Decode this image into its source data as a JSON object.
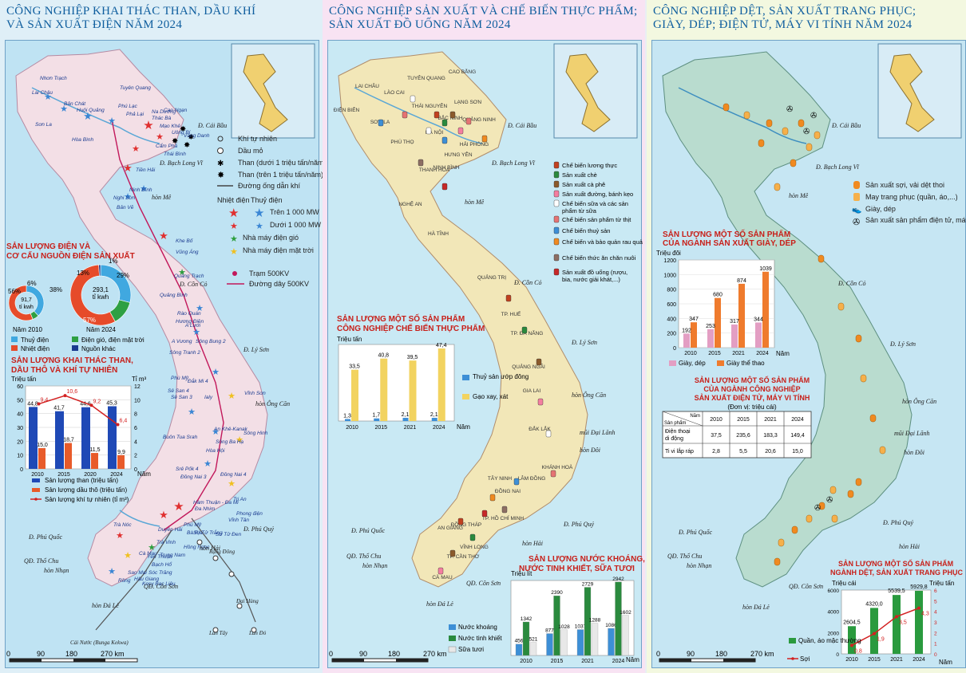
{
  "panel1": {
    "title_line1": "CÔNG NGHIỆP KHAI THÁC THAN, DẦU KHÍ",
    "title_line2": "VÀ SẢN XUẤT ĐIỆN NĂM 2024",
    "legend": {
      "khi_tu_nhien": "Khí tự nhiên",
      "dau_mo": "Dầu mỏ",
      "than_duoi": "Than (dưới 1 triệu tấn/năm)",
      "than_tren": "Than (trên 1 triệu tấn/năm)",
      "duong_ong": "Đường ống dẫn khí",
      "nhiet_dien": "Nhiệt điện",
      "thuy_dien": "Thuỷ điện",
      "tren_1000": "Trên 1 000 MW",
      "duoi_1000": "Dưới 1 000 MW",
      "gio": "Nhà máy điện gió",
      "mat_troi": "Nhà máy điện mặt trời",
      "tram": "Trạm 500KV",
      "day": "Đường dây 500KV"
    },
    "electricity": {
      "title_line1": "SẢN LƯỢNG ĐIỆN VÀ",
      "title_line2": "CƠ CẤU NGUỒN ĐIỆN SẢN XUẤT",
      "pie2010_value": "91,7",
      "pie2010_unit": "tỉ kwh",
      "pie2010_label": "Năm 2010",
      "pie2024_value": "293,1",
      "pie2024_unit": "tỉ kwh",
      "pie2024_label": "Năm 2024",
      "pct_2010_a": "56%",
      "pct_2010_b": "6%",
      "pct_2010_c": "38%",
      "pct_2024_a": "1%",
      "pct_2024_b": "13%",
      "pct_2024_c": "29%",
      "pct_2024_d": "57%",
      "legend_thuy": "Thuỷ điện",
      "legend_nhiet": "Nhiệt điện",
      "legend_gio": "Điện gió, điện mặt trời",
      "legend_khac": "Nguồn khác"
    },
    "mining": {
      "title_line1": "SẢN LƯỢNG KHAI THÁC THAN,",
      "title_line2": "DẦU THÔ VÀ KHÍ TỰ NHIÊN",
      "ylabel_left": "Triệu tấn",
      "ylabel_right": "Tỉ m³",
      "xlabel": "Năm",
      "legend_than": "Sản lượng than (triệu tấn)",
      "legend_dau": "Sản lượng dầu thô (triệu tấn)",
      "legend_khi": "Sản lượng khí tự nhiên (tỉ m³)"
    },
    "scale": {
      "s0": "0",
      "s1": "90",
      "s2": "180",
      "s3": "270 km"
    },
    "islands": {
      "bachlongvi": "Đ. Bạch Long Vĩ",
      "conco": "Đ. Cồn Cỏ",
      "lyson": "Đ. Lý Sơn",
      "phuquoc": "Đ. Phú Quốc",
      "phuquy": "Đ. Phú Quý",
      "conson": "QĐ. Côn Sơn",
      "thochu": "QĐ. Thổ Chu",
      "honnhan": "hòn Nhạn",
      "honhai": "hòn Hải",
      "honmat": "hòn Mê",
      "ongcan": "hòn Ông Căn",
      "dale": "hòn Đá Lẻ",
      "caibau": "Đ. Cái Bầu",
      "cainuoc": "Cái Nước (Bunga Kekwa)",
      "landuc": "Lan Tây",
      "lando": "Lan Đỏ",
      "daihung": "Đại Hùng",
      "rangdong": "Rạng Đông"
    },
    "places": [
      "Lai Châu",
      "Bản Chát",
      "Huội Quảng",
      "Sơn La",
      "Hòa Bình",
      "Tuyên Quang",
      "Phú Lạc",
      "Thác Bà",
      "Na Dương",
      "Cao Ngạn",
      "Uông Bí",
      "Phả Lại",
      "Mạo Khê",
      "Vàng Danh",
      "Cẩm Phả",
      "Thái Bình",
      "Tiền Hải",
      "Ninh Bình",
      "Nghi Sơn",
      "Bản Vẽ",
      "Khe Bố",
      "Vũng Áng",
      "Quảng Trạch",
      "Quảng Bình",
      "Rào Quán",
      "Hương Điền",
      "A Lưới",
      "A Vương",
      "Sông Bung 2",
      "Sông Tranh 2",
      "Đắk Mi 4",
      "Vĩnh Sơn",
      "Phù Mỹ",
      "Sê San 3",
      "Sê San 4",
      "Ialy",
      "An Khê-Kanak",
      "Sông Ba Hạ",
      "Sông Hinh",
      "Hòa Hội",
      "Buôn Tua Srah",
      "Srê Pốk 4",
      "Đồng Nai 3",
      "Đồng Nai 4",
      "Đa Nhim",
      "Hàm Thuận - Đa Mi",
      "Trị An",
      "Vĩnh Tân",
      "Phong điện",
      "Sư Tử Đen",
      "Sư Tử Trắng",
      "Hồng Ngọc",
      "Bạch Hổ",
      "Rồng",
      "Cà Mau",
      "Trà Nóc",
      "Sao Mai",
      "Hậu Giang",
      "Sóc Trăng",
      "Kosy Bạc Liêu",
      "Duyên Hải",
      "Trà Vinh",
      "Trung Nam",
      "Yên Thuận",
      "Phú Mỹ",
      "Bà Rịa",
      "Nhơn Trạch"
    ],
    "pie2010_slices": [
      38,
      6,
      56
    ],
    "pie2024_slices": [
      29,
      13,
      57,
      1
    ],
    "colors": {
      "hydro": "#40a8e0",
      "thermal": "#e64b2a",
      "renewable": "#2ea043",
      "other": "#1a3a8f"
    }
  },
  "panel2": {
    "title_line1": "CÔNG NGHIỆP SẢN XUẤT VÀ CHẾ BIẾN THỰC PHẨM;",
    "title_line2": "SẢN XUẤT ĐỒ UỐNG NĂM 2024",
    "legend": [
      "Chế biến lương thực",
      "Sản xuất chè",
      "Sản xuất cà phê",
      "Sản xuất đường, bánh kẹo",
      "Chế biến sữa và các sản phẩm từ sữa",
      "Chế biến sản phẩm từ thịt",
      "Chế biến thuỷ sản",
      "Chế biến và bảo quản rau quả",
      "Chế biến thức ăn chăn nuôi",
      "Sản xuất đồ uống (rượu, bia, nước giải khát,...)"
    ],
    "food": {
      "title_line1": "SẢN LƯỢNG MỘT SỐ SẢN PHẨM",
      "title_line2": "CÔNG NGHIỆP CHẾ BIẾN THỰC PHẨM",
      "ylabel": "Triệu tấn",
      "xlabel": "Năm",
      "legend_thuysan": "Thuỷ sản ướp đông",
      "legend_gao": "Gạo xay, xát"
    },
    "drinks": {
      "title_line1": "SẢN LƯỢNG NƯỚC KHOÁNG,",
      "title_line2": "NƯỚC TINH KHIẾT, SỮA TƯƠI",
      "ylabel": "Triệu lít",
      "xlabel": "Năm",
      "legend_khoang": "Nước khoáng",
      "legend_tinhkhiet": "Nước tinh khiết",
      "legend_sua": "Sữa tươi"
    },
    "scale": {
      "s0": "0",
      "s1": "90",
      "s2": "180",
      "s3": "270 km"
    },
    "provinces": [
      "LAI CHÂU",
      "LÀO CAI",
      "TUYÊN QUANG",
      "CAO BẰNG",
      "THÁI NGUYÊN",
      "LẠNG SƠN",
      "ĐIỆN BIÊN",
      "SƠN LA",
      "PHÚ THỌ",
      "BẮC NINH",
      "QUẢNG NINH",
      "HÀ NỘI",
      "HẢI PHÒNG",
      "HƯNG YÊN",
      "NINH BÌNH",
      "THANH HOÁ",
      "NGHỆ AN",
      "HÀ TĨNH",
      "QUẢNG TRỊ",
      "TP. HUẾ",
      "TP. ĐÀ NẴNG",
      "QUẢNG NGÃI",
      "GIA LAI",
      "ĐẮK LẮK",
      "KHÁNH HOÀ",
      "LÂM ĐỒNG",
      "TÂY NINH",
      "ĐỒNG NAI",
      "TP. HỒ CHÍ MINH",
      "AN GIANG",
      "ĐỒNG THÁP",
      "VĨNH LONG",
      "TP. CẦN THƠ",
      "CÀ MAU"
    ],
    "islands": {
      "caibau": "Đ. Cái Bầu",
      "bachlongvi": "Đ. Bạch Long Vĩ",
      "honme": "hòn Mê",
      "conco": "Đ. Cồn Cỏ",
      "lyson": "Đ. Lý Sơn",
      "ongcan": "hòn Ông Căn",
      "dailanh": "mũi Đại Lãnh",
      "hondoi": "hòn Đôi",
      "phuquy": "Đ. Phú Quý",
      "phuquoc": "Đ. Phú Quốc",
      "thochu": "QĐ. Thổ Chu",
      "honnhan": "hòn Nhạn",
      "honhai": "hòn Hải",
      "conson": "QĐ. Côn Sơn",
      "dale": "hòn Đá Lẻ"
    }
  },
  "panel3": {
    "title_line1": "CÔNG NGHIỆP DỆT, SẢN XUẤT TRANG PHỤC;",
    "title_line2": "GIÀY, DÉP; ĐIỆN TỬ, MÁY VI TÍNH NĂM 2024",
    "legend": [
      "Sản xuất sợi, vải dệt thoi",
      "May trang phục (quần, áo,...)",
      "Giày, dép",
      "Sản xuất sản phẩm điện tử, máy vi tính"
    ],
    "shoes": {
      "title_line1": "SẢN LƯỢNG MỘT SỐ SẢN PHẨM",
      "title_line2": "CỦA NGÀNH SẢN XUẤT GIÀY, DÉP",
      "ylabel": "Triệu đôi",
      "xlabel": "Năm",
      "legend_giay": "Giày, dép",
      "legend_thethao": "Giày thể thao"
    },
    "electronics": {
      "title_line1": "SẢN LƯỢNG MỘT SỐ SẢN PHẨM",
      "title_line2": "CỦA NGÀNH CÔNG NGHIỆP",
      "title_line3": "SẢN XUẤT ĐIỆN TỬ, MÁY VI TÍNH",
      "unit": "(Đơn vị: triệu cái)",
      "header_corner_top": "Năm",
      "header_corner_bottom": "Sản phẩm",
      "years": [
        "2010",
        "2015",
        "2021",
        "2024"
      ],
      "row1_label": "Điện thoại di động",
      "row1": [
        "37,5",
        "235,6",
        "183,3",
        "149,4"
      ],
      "row2_label": "Ti vi lắp ráp",
      "row2": [
        "2,8",
        "5,5",
        "20,6",
        "15,0"
      ]
    },
    "textile": {
      "title_line1": "SẢN LƯỢNG MỘT SỐ SẢN PHẨM",
      "title_line2": "NGÀNH DỆT, SẢN XUẤT TRANG PHỤC",
      "ylabel_left": "Triệu cái",
      "ylabel_right": "Triệu tấn",
      "xlabel": "Năm",
      "legend_quanao": "Quần, áo mặc thường",
      "legend_soi": "Sợi"
    },
    "scale": {
      "s0": "0",
      "s1": "90",
      "s2": "180",
      "s3": "270 km"
    },
    "islands": {
      "caibau": "Đ. Cái Bầu",
      "bachlongvi": "Đ. Bạch Long Vĩ",
      "honme": "hòn Mê",
      "conco": "Đ. Cồn Cỏ",
      "lyson": "Đ. Lý Sơn",
      "ongcan": "hòn Ông Căn",
      "dailanh": "mũi Đại Lãnh",
      "hondoi": "hòn Đôi",
      "phuquy": "Đ. Phú Quý",
      "phuquoc": "Đ. Phú Quốc",
      "thochu": "QĐ. Thổ Chu",
      "honnhan": "hòn Nhạn",
      "honhai": "hòn Hải",
      "conson": "QĐ. Côn Sơn",
      "dale": "hòn Đá Lẻ"
    }
  },
  "chart_data": [
    {
      "type": "pie",
      "title": "SẢN LƯỢNG ĐIỆN VÀ CƠ CẤU NGUỒN ĐIỆN SẢN XUẤT",
      "categories": [
        "Thuỷ điện",
        "Điện gió, điện mặt trời",
        "Nhiệt điện"
      ],
      "values": [
        38,
        6,
        56
      ],
      "label": "Năm 2010",
      "total": "91,7 tỉ kwh"
    },
    {
      "type": "pie",
      "title": "SẢN LƯỢNG ĐIỆN VÀ CƠ CẤU NGUỒN ĐIỆN SẢN XUẤT",
      "categories": [
        "Thuỷ điện",
        "Điện gió, điện mặt trời",
        "Nhiệt điện",
        "Nguồn khác"
      ],
      "values": [
        29,
        13,
        57,
        1
      ],
      "label": "Năm 2024",
      "total": "293,1 tỉ kwh"
    },
    {
      "type": "bar",
      "title": "SẢN LƯỢNG KHAI THÁC THAN, DẦU THÔ VÀ KHÍ TỰ NHIÊN",
      "categories": [
        "2010",
        "2015",
        "2020",
        "2024"
      ],
      "series": [
        {
          "name": "Sản lượng than (triệu tấn)",
          "values": [
            44.8,
            41.7,
            44.6,
            45.3
          ],
          "labels": [
            "44,8",
            "41,7",
            "44,6",
            "45,3"
          ]
        },
        {
          "name": "Sản lượng dầu thô (triệu tấn)",
          "values": [
            15.0,
            18.7,
            11.5,
            9.9
          ],
          "labels": [
            "15,0",
            "18,7",
            "11,5",
            "9,9"
          ]
        },
        {
          "name": "Sản lượng khí tự nhiên (tỉ m³)",
          "values": [
            9.4,
            10.6,
            9.2,
            6.4
          ],
          "labels": [
            "9,4",
            "10,6",
            "9,2",
            "6,4"
          ],
          "type": "line"
        }
      ],
      "ylabel": "Triệu tấn",
      "y2label": "Tỉ m³",
      "xlabel": "Năm",
      "ylim": [
        0,
        60
      ],
      "y2lim": [
        0,
        12
      ],
      "yticks": [
        0,
        10,
        20,
        30,
        40,
        50,
        60
      ],
      "y2ticks": [
        0,
        2,
        4,
        6,
        8,
        10,
        12
      ]
    },
    {
      "type": "bar",
      "title": "SẢN LƯỢNG MỘT SỐ SẢN PHẨM CÔNG NGHIỆP CHẾ BIẾN THỰC PHẨM",
      "categories": [
        "2010",
        "2015",
        "2021",
        "2024"
      ],
      "series": [
        {
          "name": "Thuỷ sản ướp đông",
          "values": [
            1.3,
            1.7,
            2.1,
            2.1
          ],
          "labels": [
            "1,3",
            "1,7",
            "2,1",
            "2,1"
          ]
        },
        {
          "name": "Gạo xay, xát",
          "values": [
            33.5,
            40.8,
            39.5,
            47.4
          ],
          "labels": [
            "33,5",
            "40,8",
            "39,5",
            "47,4"
          ]
        }
      ],
      "ylabel": "Triệu tấn",
      "xlabel": "Năm",
      "ylim": [
        0,
        50
      ]
    },
    {
      "type": "bar",
      "title": "SẢN LƯỢNG NƯỚC KHOÁNG, NƯỚC TINH KHIẾT, SỮA TƯƠI",
      "categories": [
        "2010",
        "2015",
        "2021",
        "2024"
      ],
      "series": [
        {
          "name": "Nước khoáng",
          "values": [
            456,
            877,
            1037,
            1086
          ]
        },
        {
          "name": "Nước tinh khiết",
          "values": [
            1342,
            2390,
            2729,
            2942
          ]
        },
        {
          "name": "Sữa tươi",
          "values": [
            521,
            1028,
            1288,
            1602
          ]
        }
      ],
      "ylabel": "Triệu lít",
      "xlabel": "Năm",
      "ylim": [
        0,
        3000
      ]
    },
    {
      "type": "bar",
      "title": "SẢN LƯỢNG MỘT SỐ SẢN PHẨM CỦA NGÀNH SẢN XUẤT GIÀY, DÉP",
      "categories": [
        "2010",
        "2015",
        "2021",
        "2024"
      ],
      "series": [
        {
          "name": "Giày, dép",
          "values": [
            192,
            253,
            317,
            344
          ]
        },
        {
          "name": "Giày thể thao",
          "values": [
            347,
            680,
            874,
            1039
          ]
        }
      ],
      "ylabel": "Triệu đôi",
      "xlabel": "Năm",
      "ylim": [
        0,
        1200
      ],
      "yticks": [
        0,
        200,
        400,
        600,
        800,
        1000,
        1200
      ]
    },
    {
      "type": "table",
      "title": "SẢN LƯỢNG MỘT SỐ SẢN PHẨM CỦA NGÀNH CÔNG NGHIỆP SẢN XUẤT ĐIỆN TỬ, MÁY VI TÍNH",
      "columns": [
        "2010",
        "2015",
        "2021",
        "2024"
      ],
      "rows": [
        {
          "name": "Điện thoại di động",
          "values": [
            "37,5",
            "235,6",
            "183,3",
            "149,4"
          ]
        },
        {
          "name": "Ti vi lắp ráp",
          "values": [
            "2,8",
            "5,5",
            "20,6",
            "15,0"
          ]
        }
      ]
    },
    {
      "type": "bar",
      "title": "SẢN LƯỢNG MỘT SỐ SẢN PHẨM NGÀNH DỆT, SẢN XUẤT TRANG PHỤC",
      "categories": [
        "2010",
        "2015",
        "2021",
        "2024"
      ],
      "series": [
        {
          "name": "Quần, áo mặc thường",
          "values": [
            2604.5,
            4320.0,
            5539.5,
            5929.8
          ],
          "labels": [
            "2604,5",
            "4320,0",
            "5539,5",
            "5929,8"
          ]
        },
        {
          "name": "Sợi",
          "values": [
            0.8,
            1.9,
            3.5,
            4.3
          ],
          "labels": [
            "0,8",
            "1,9",
            "3,5",
            "4,3"
          ],
          "type": "line"
        }
      ],
      "ylabel": "Triệu cái",
      "y2label": "Triệu tấn",
      "xlabel": "Năm",
      "ylim": [
        0,
        6000
      ],
      "y2lim": [
        0,
        6
      ],
      "yticks": [
        0,
        2000,
        4000,
        6000
      ],
      "y2ticks": [
        0,
        1,
        2,
        3,
        4,
        5,
        6
      ]
    }
  ]
}
